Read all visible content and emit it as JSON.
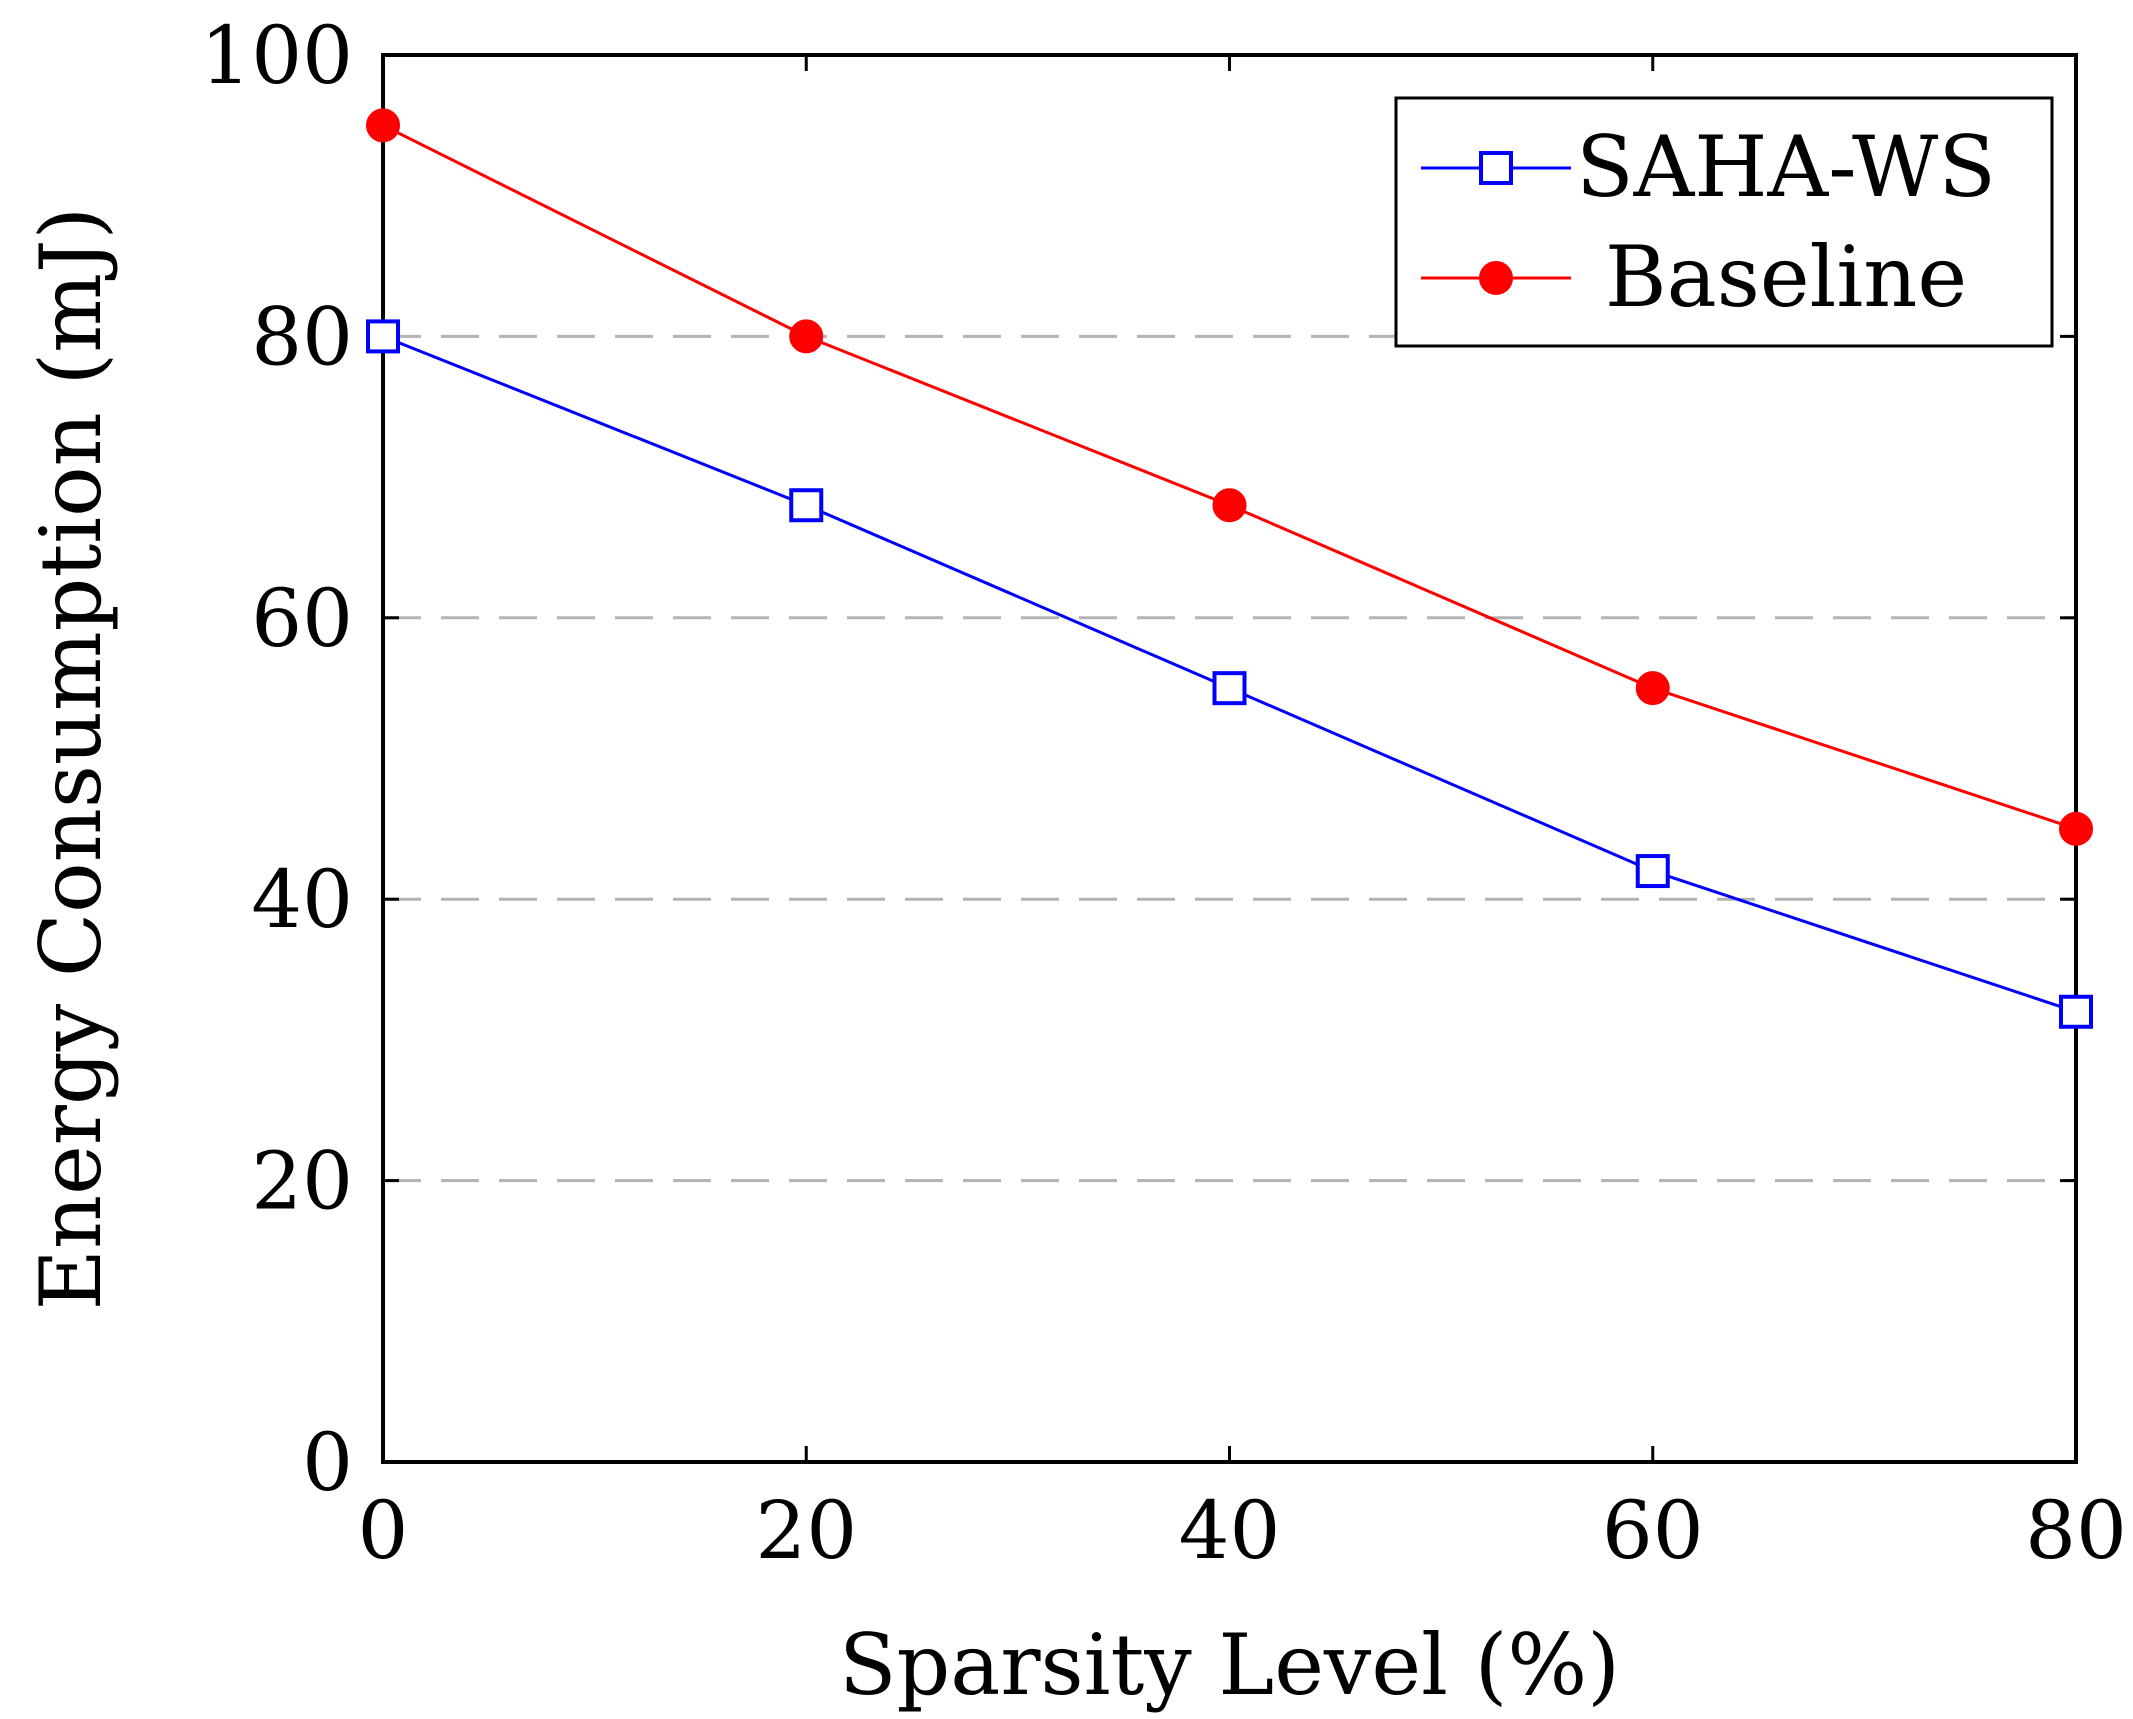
{
  "chart_data": {
    "type": "line",
    "title": "",
    "xlabel": "Sparsity Level (%)",
    "ylabel": "Energy Consumption (mJ)",
    "x": [
      0,
      20,
      40,
      60,
      80
    ],
    "xlim": [
      0,
      80
    ],
    "ylim": [
      0,
      100
    ],
    "xticks": [
      0,
      20,
      40,
      60,
      80
    ],
    "yticks": [
      0,
      20,
      40,
      60,
      80,
      100
    ],
    "grid": "horizontal dashed",
    "legend_position": "top-right",
    "series": [
      {
        "name": "SAHA-WS",
        "color": "#0000ff",
        "marker": "open-square",
        "values": [
          80,
          68,
          55,
          42,
          32
        ]
      },
      {
        "name": "Baseline",
        "color": "#ff0000",
        "marker": "filled-circle",
        "values": [
          95,
          80,
          68,
          55,
          45
        ]
      }
    ]
  }
}
